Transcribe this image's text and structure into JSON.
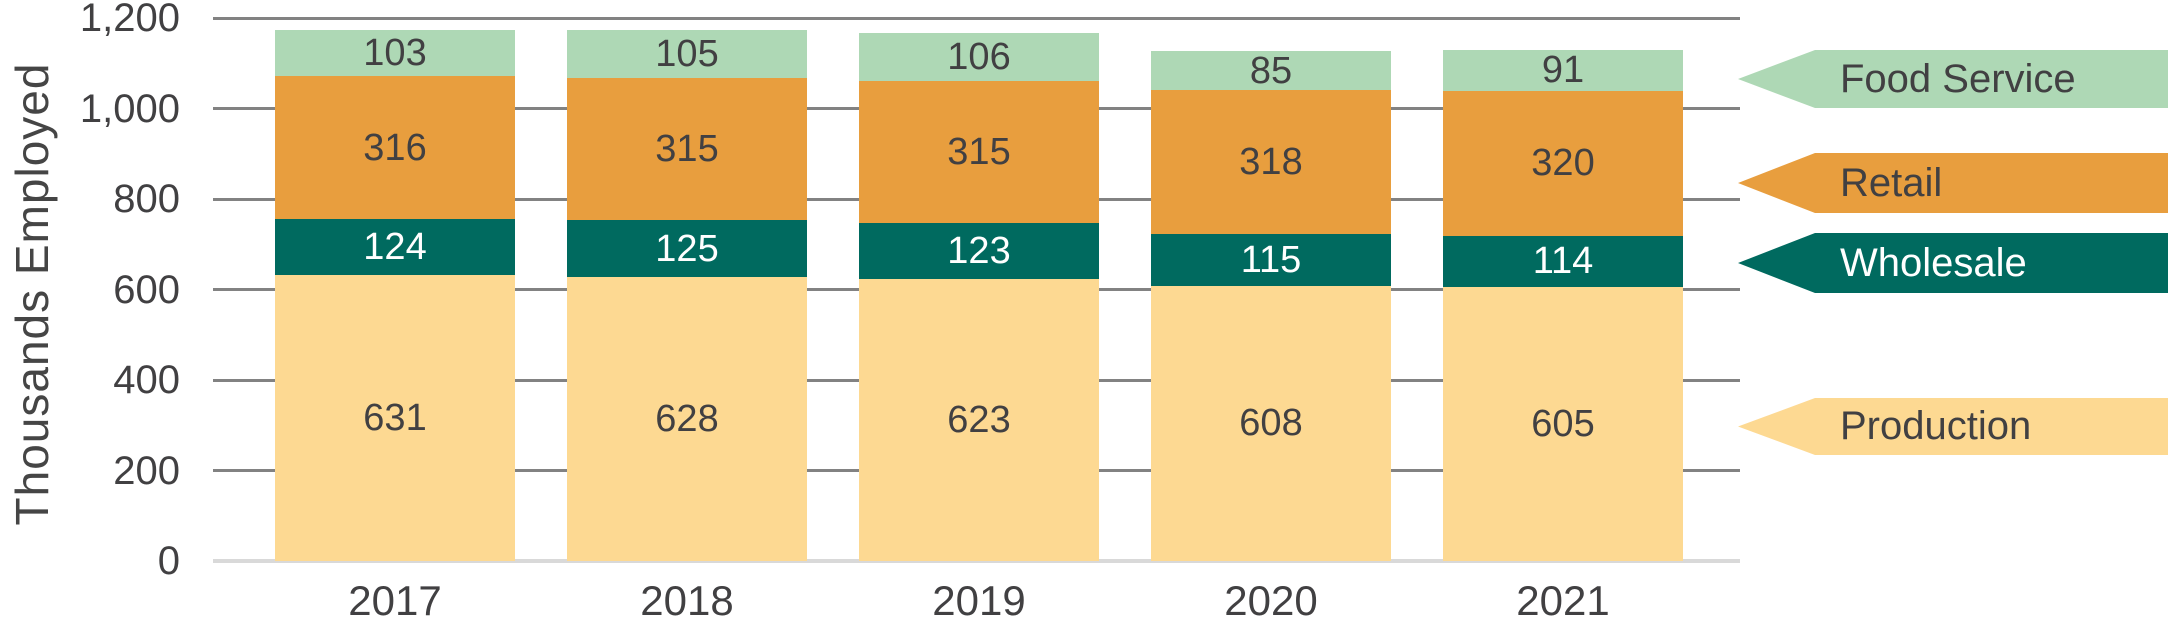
{
  "chart_data": {
    "type": "bar",
    "variant": "stacked-column",
    "title": "",
    "ylabel": "Thousands Employed",
    "xlabel": "",
    "categories": [
      "2017",
      "2018",
      "2019",
      "2020",
      "2021"
    ],
    "series": [
      {
        "name": "Production",
        "color": "#fdd992",
        "label_color": "#414042",
        "values": [
          631,
          628,
          623,
          608,
          605
        ]
      },
      {
        "name": "Wholesale",
        "color": "#006a5f",
        "label_color": "#ffffff",
        "values": [
          124,
          125,
          123,
          115,
          114
        ]
      },
      {
        "name": "Retail",
        "color": "#e89e3e",
        "label_color": "#414042",
        "values": [
          316,
          315,
          315,
          318,
          320
        ]
      },
      {
        "name": "Food Service",
        "color": "#aed8b5",
        "label_color": "#414042",
        "values": [
          103,
          105,
          106,
          85,
          91
        ]
      }
    ],
    "totals": [
      1174,
      1173,
      1167,
      1126,
      1130
    ],
    "ylim": [
      0,
      1200
    ],
    "yticks": [
      {
        "value": 0,
        "label": "0"
      },
      {
        "value": 200,
        "label": "200"
      },
      {
        "value": 400,
        "label": "400"
      },
      {
        "value": 600,
        "label": "600"
      },
      {
        "value": 800,
        "label": "800"
      },
      {
        "value": 1000,
        "label": "1,000"
      },
      {
        "value": 1200,
        "label": "1,200"
      }
    ],
    "grid": true,
    "bar_value_labels": true,
    "legend": {
      "position": "right",
      "style": "left-pointing-arrows",
      "items": [
        {
          "label": "Food Service",
          "color": "#aed8b5",
          "text_color": "#414042"
        },
        {
          "label": "Retail",
          "color": "#e89e3e",
          "text_color": "#414042"
        },
        {
          "label": "Wholesale",
          "color": "#006a5f",
          "text_color": "#ffffff"
        },
        {
          "label": "Production",
          "color": "#fdd992",
          "text_color": "#414042"
        }
      ]
    },
    "colors": {
      "grid_line": "#828282",
      "zero_baseline": "#d9d9d9",
      "axis_text": "#414042"
    }
  }
}
